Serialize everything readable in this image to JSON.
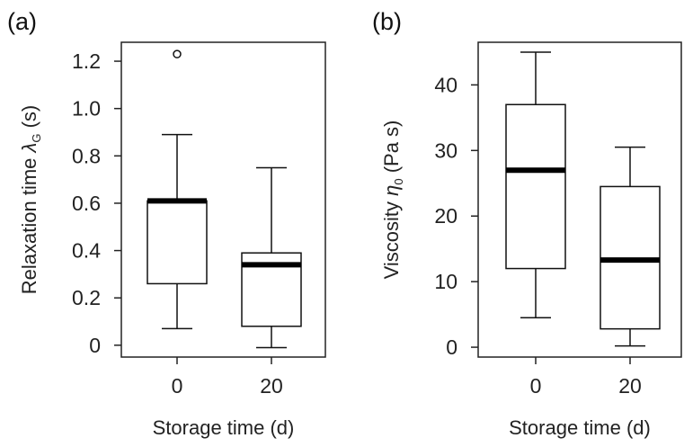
{
  "chart_data": [
    {
      "type": "box",
      "panel_label": "(a)",
      "xlabel": "Storage time (d)",
      "ylabel": {
        "prefix": "Relaxation time ",
        "symbol": "λ",
        "subscript": "G",
        "suffix": " (s)"
      },
      "ylim": [
        -0.05,
        1.28
      ],
      "yticks": [
        0,
        0.2,
        0.4,
        0.6,
        0.8,
        1.0,
        1.2
      ],
      "ytick_labels": [
        "0",
        "0.2",
        "0.4",
        "0.6",
        "0.8",
        "1.0",
        "1.2"
      ],
      "categories": [
        "0",
        "20"
      ],
      "boxes": [
        {
          "category": "0",
          "min": 0.07,
          "q1": 0.26,
          "median": 0.61,
          "q3": 0.61,
          "max": 0.89,
          "outliers": [
            1.23
          ]
        },
        {
          "category": "20",
          "min": -0.01,
          "q1": 0.08,
          "median": 0.34,
          "q3": 0.39,
          "max": 0.75,
          "outliers": []
        }
      ],
      "grid": false
    },
    {
      "type": "box",
      "panel_label": "(b)",
      "xlabel": "Storage time (d)",
      "ylabel": {
        "prefix": "Viscosity ",
        "symbol": "η",
        "subscript": "0",
        "suffix": " (Pa s)"
      },
      "ylim": [
        -1.5,
        46.5
      ],
      "yticks": [
        0,
        10,
        20,
        30,
        40
      ],
      "ytick_labels": [
        "0",
        "10",
        "20",
        "30",
        "40"
      ],
      "categories": [
        "0",
        "20"
      ],
      "boxes": [
        {
          "category": "0",
          "min": 4.5,
          "q1": 12.0,
          "median": 27.0,
          "q3": 37.0,
          "max": 45.0,
          "outliers": []
        },
        {
          "category": "20",
          "min": 0.2,
          "q1": 2.8,
          "median": 13.3,
          "q3": 24.5,
          "max": 30.5,
          "outliers": []
        }
      ],
      "grid": false
    }
  ]
}
